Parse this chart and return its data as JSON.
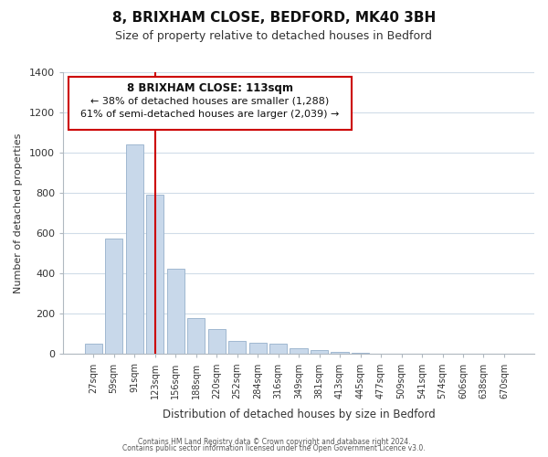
{
  "title": "8, BRIXHAM CLOSE, BEDFORD, MK40 3BH",
  "subtitle": "Size of property relative to detached houses in Bedford",
  "xlabel": "Distribution of detached houses by size in Bedford",
  "ylabel": "Number of detached properties",
  "bar_color": "#c8d8ea",
  "bar_edge_color": "#a0b8d0",
  "vline_color": "#cc0000",
  "vline_x": 3,
  "categories": [
    "27sqm",
    "59sqm",
    "91sqm",
    "123sqm",
    "156sqm",
    "188sqm",
    "220sqm",
    "252sqm",
    "284sqm",
    "316sqm",
    "349sqm",
    "381sqm",
    "413sqm",
    "445sqm",
    "477sqm",
    "509sqm",
    "541sqm",
    "574sqm",
    "606sqm",
    "638sqm",
    "670sqm"
  ],
  "values": [
    50,
    575,
    1040,
    790,
    425,
    178,
    125,
    65,
    55,
    50,
    28,
    20,
    12,
    5,
    2,
    0,
    0,
    0,
    0,
    0,
    0
  ],
  "ylim": [
    0,
    1400
  ],
  "yticks": [
    0,
    200,
    400,
    600,
    800,
    1000,
    1200,
    1400
  ],
  "annotation_title": "8 BRIXHAM CLOSE: 113sqm",
  "annotation_line1": "← 38% of detached houses are smaller (1,288)",
  "annotation_line2": "61% of semi-detached houses are larger (2,039) →",
  "annotation_box_color": "#ffffff",
  "annotation_box_edge": "#cc0000",
  "footer1": "Contains HM Land Registry data © Crown copyright and database right 2024.",
  "footer2": "Contains public sector information licensed under the Open Government Licence v3.0.",
  "background_color": "#ffffff",
  "grid_color": "#d0dce8"
}
